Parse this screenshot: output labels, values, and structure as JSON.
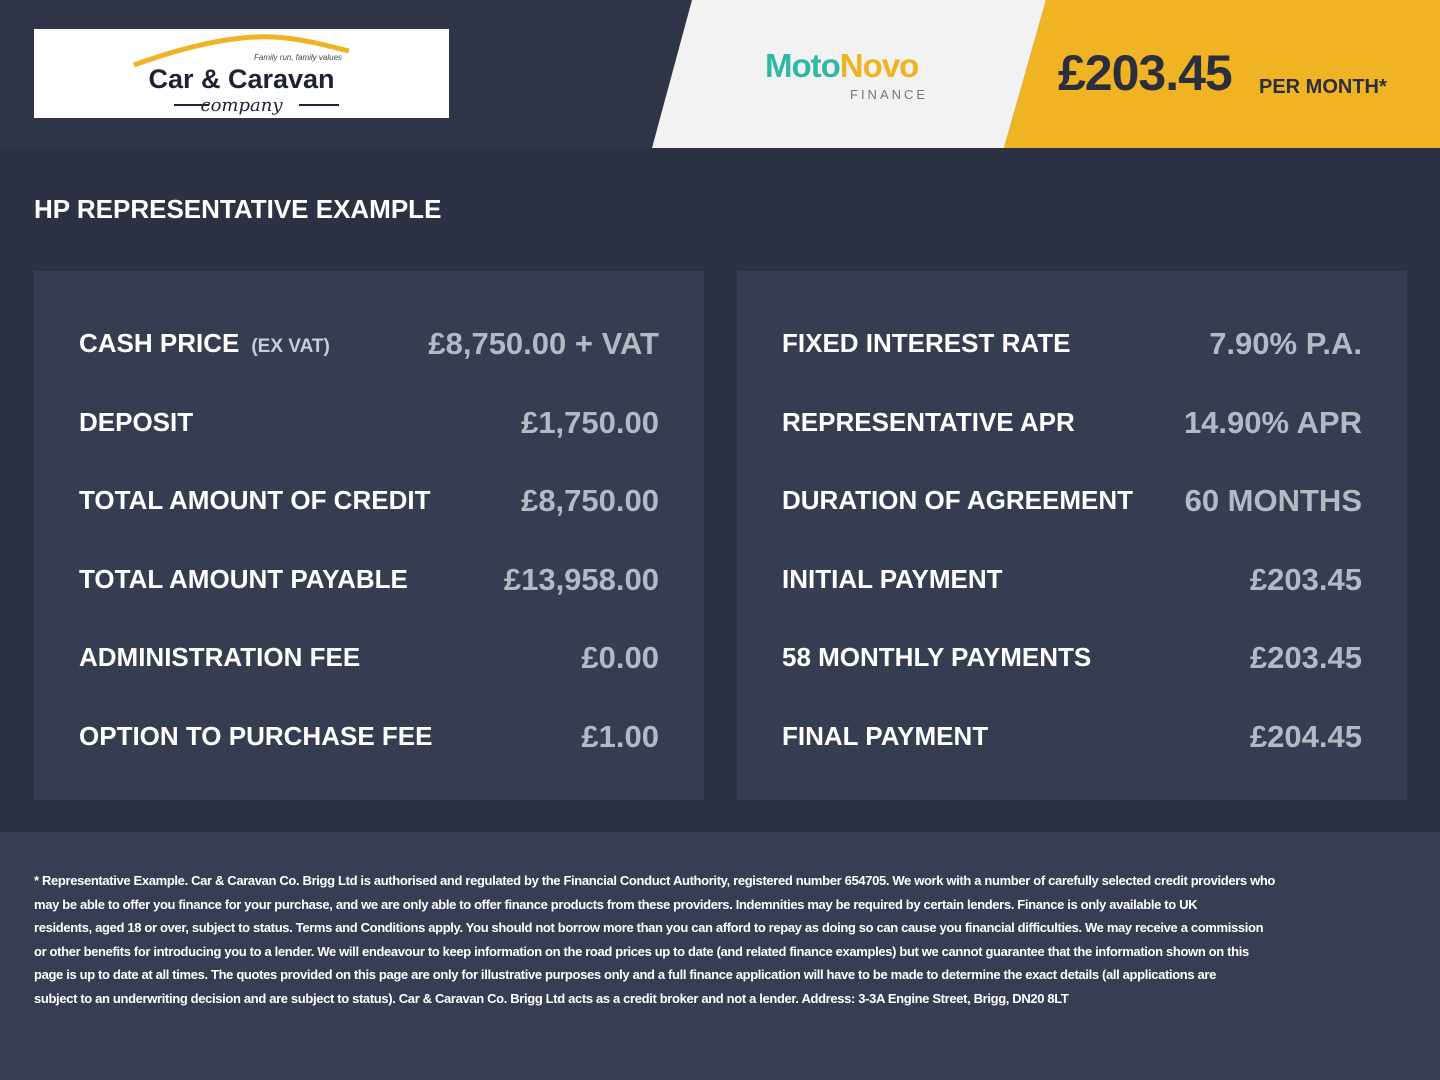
{
  "header": {
    "logo": {
      "name": "Car & Caravan",
      "sub": "company",
      "tagline": "Family run, family values"
    },
    "lender": {
      "part1": "Moto",
      "part2": "Novo",
      "sub": "FINANCE"
    },
    "price": "£203.45",
    "per_month": "PER MONTH*",
    "colors": {
      "accent": "#f0b323",
      "teal": "#2fb8a6"
    }
  },
  "title": "HP REPRESENTATIVE EXAMPLE",
  "left": [
    {
      "label": "CASH PRICE",
      "note": "(EX VAT)",
      "value": "£8,750.00 + VAT"
    },
    {
      "label": "DEPOSIT",
      "value": "£1,750.00"
    },
    {
      "label": "TOTAL AMOUNT OF CREDIT",
      "value": "£8,750.00"
    },
    {
      "label": "TOTAL AMOUNT PAYABLE",
      "value": "£13,958.00"
    },
    {
      "label": "ADMINISTRATION FEE",
      "value": "£0.00"
    },
    {
      "label": "OPTION TO PURCHASE FEE",
      "value": "£1.00"
    }
  ],
  "right": [
    {
      "label": "FIXED INTEREST RATE",
      "value": "7.90% P.A."
    },
    {
      "label": "REPRESENTATIVE APR",
      "value": "14.90% APR"
    },
    {
      "label": "DURATION OF AGREEMENT",
      "value": "60 MONTHS"
    },
    {
      "label": "INITIAL PAYMENT",
      "value": "£203.45"
    },
    {
      "label": "58 MONTHLY PAYMENTS",
      "value": "£203.45"
    },
    {
      "label": "FINAL PAYMENT",
      "value": "£204.45"
    }
  ],
  "disclaimer": [
    "* Representative Example. Car & Caravan Co. Brigg Ltd is authorised and regulated by the Financial Conduct Authority, registered number 654705. We work with a number of carefully selected credit providers who",
    "may be able to offer you finance for your purchase, and we are only able to offer finance products from these providers. Indemnities may be required by certain lenders. Finance is only available to UK",
    "residents, aged 18 or over, subject to status. Terms and Conditions apply. You should not borrow more than you can afford to repay as doing so can cause you financial difficulties. We may receive a commission",
    "or other benefits for introducing you to a lender. We will endeavour to keep information on the road prices up to date (and related finance examples) but we cannot guarantee that the information shown on this",
    "page is up to date at all times. The quotes provided on this page are only for illustrative purposes only and a full finance application will have to be made to determine the exact details (all applications are",
    "subject to an underwriting decision and are subject to status). Car & Caravan Co. Brigg Ltd acts as a credit broker and not a lender. Address: 3-3A Engine Street, Brigg, DN20 8LT"
  ]
}
